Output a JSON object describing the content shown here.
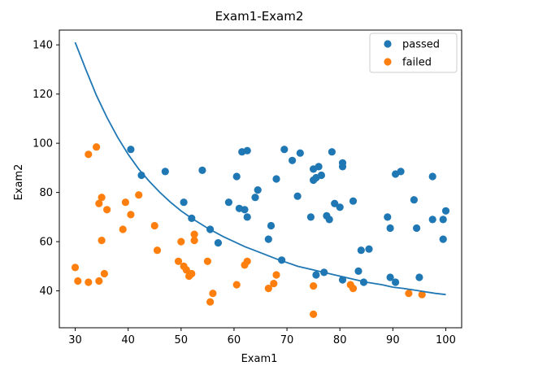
{
  "chart_data": {
    "type": "scatter",
    "title": "Exam1-Exam2",
    "xlabel": "Exam1",
    "ylabel": "Exam2",
    "xlim": [
      27,
      103
    ],
    "ylim": [
      25,
      146
    ],
    "xticks": [
      30,
      40,
      50,
      60,
      70,
      80,
      90,
      100
    ],
    "yticks": [
      40,
      60,
      80,
      100,
      120,
      140
    ],
    "grid": false,
    "legend_position": "top-right",
    "series": [
      {
        "name": "passed",
        "color": "#1f77b4",
        "points": [
          [
            40.5,
            97.5
          ],
          [
            42.5,
            87
          ],
          [
            47,
            88.5
          ],
          [
            50.5,
            76
          ],
          [
            52,
            69.5
          ],
          [
            54,
            89
          ],
          [
            55.5,
            65
          ],
          [
            57,
            59.5
          ],
          [
            59,
            76
          ],
          [
            60.5,
            86.5
          ],
          [
            61,
            73.5
          ],
          [
            61.5,
            96.5
          ],
          [
            62,
            73
          ],
          [
            62.5,
            97
          ],
          [
            62.5,
            70
          ],
          [
            64,
            78
          ],
          [
            64.5,
            81
          ],
          [
            66.5,
            61
          ],
          [
            67,
            66.5
          ],
          [
            68,
            85.5
          ],
          [
            69,
            52.5
          ],
          [
            69.5,
            97.5
          ],
          [
            71,
            93
          ],
          [
            72,
            78.5
          ],
          [
            72.5,
            96
          ],
          [
            74.5,
            70
          ],
          [
            75,
            85
          ],
          [
            75,
            89.5
          ],
          [
            75.5,
            86
          ],
          [
            75.5,
            46.5
          ],
          [
            76,
            90.5
          ],
          [
            76.5,
            87
          ],
          [
            77,
            47.5
          ],
          [
            77.5,
            70.5
          ],
          [
            78,
            69
          ],
          [
            78.5,
            96.5
          ],
          [
            79,
            75.5
          ],
          [
            80,
            74
          ],
          [
            80.5,
            92
          ],
          [
            80.5,
            90.5
          ],
          [
            80.5,
            44.5
          ],
          [
            82.5,
            76.5
          ],
          [
            83.5,
            48
          ],
          [
            84,
            56.5
          ],
          [
            84.5,
            43.5
          ],
          [
            85.5,
            57
          ],
          [
            89,
            70
          ],
          [
            89.5,
            65.5
          ],
          [
            89.5,
            45.5
          ],
          [
            90.5,
            87.5
          ],
          [
            90.5,
            43.5
          ],
          [
            91.5,
            88.5
          ],
          [
            94,
            77
          ],
          [
            94.5,
            65.5
          ],
          [
            95,
            45.5
          ],
          [
            97.5,
            69
          ],
          [
            97.5,
            86.5
          ],
          [
            99.5,
            69
          ],
          [
            99.5,
            61
          ],
          [
            100,
            72.5
          ]
        ]
      },
      {
        "name": "failed",
        "color": "#ff7f0e",
        "points": [
          [
            30,
            49.5
          ],
          [
            30.5,
            44
          ],
          [
            32.5,
            95.5
          ],
          [
            32.5,
            43.5
          ],
          [
            34,
            98.5
          ],
          [
            34.5,
            75.5
          ],
          [
            34.5,
            44
          ],
          [
            35,
            60.5
          ],
          [
            35,
            78
          ],
          [
            35.5,
            47
          ],
          [
            36,
            73
          ],
          [
            39,
            65
          ],
          [
            39.5,
            76
          ],
          [
            40.5,
            71
          ],
          [
            42,
            79
          ],
          [
            45,
            66.5
          ],
          [
            45.5,
            56.5
          ],
          [
            49.5,
            52
          ],
          [
            50,
            60
          ],
          [
            50.5,
            50
          ],
          [
            51,
            48.5
          ],
          [
            51.5,
            46
          ],
          [
            52,
            47
          ],
          [
            52.5,
            63
          ],
          [
            52.5,
            60.5
          ],
          [
            55,
            52
          ],
          [
            55.5,
            35.5
          ],
          [
            56,
            39
          ],
          [
            60.5,
            42.5
          ],
          [
            62,
            50.5
          ],
          [
            62.5,
            52
          ],
          [
            66.5,
            41
          ],
          [
            67.5,
            43
          ],
          [
            68,
            46.5
          ],
          [
            75,
            42
          ],
          [
            75,
            30.5
          ],
          [
            82,
            42.5
          ],
          [
            82.5,
            41
          ],
          [
            93,
            39
          ],
          [
            95.5,
            38.5
          ]
        ]
      }
    ],
    "boundary": {
      "color": "#1f77b4",
      "points": [
        [
          30,
          141
        ],
        [
          32,
          130
        ],
        [
          34,
          119.5
        ],
        [
          36,
          110.5
        ],
        [
          38,
          102.5
        ],
        [
          40,
          95.5
        ],
        [
          42,
          89.5
        ],
        [
          44,
          84.5
        ],
        [
          46,
          80
        ],
        [
          48,
          76
        ],
        [
          50,
          72.5
        ],
        [
          52,
          69.5
        ],
        [
          55,
          65.5
        ],
        [
          58,
          62
        ],
        [
          60,
          60
        ],
        [
          62,
          58
        ],
        [
          65,
          55.5
        ],
        [
          68,
          53
        ],
        [
          70,
          51.5
        ],
        [
          72,
          50
        ],
        [
          75,
          48.5
        ],
        [
          78,
          47
        ],
        [
          80,
          46
        ],
        [
          83,
          44.5
        ],
        [
          85,
          43.5
        ],
        [
          88,
          42.5
        ],
        [
          90,
          41.5
        ],
        [
          92,
          41
        ],
        [
          95,
          40
        ],
        [
          98,
          39
        ],
        [
          100,
          38.5
        ]
      ]
    }
  }
}
